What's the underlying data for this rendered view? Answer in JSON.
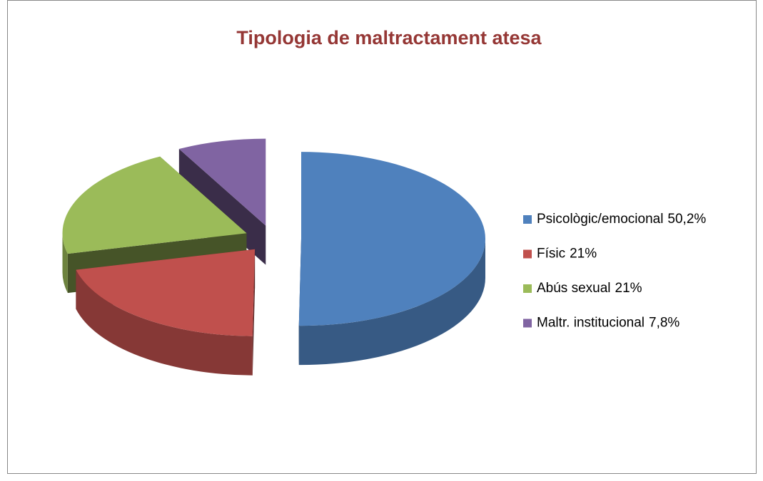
{
  "chart_data": {
    "type": "pie3d",
    "title": "Tipologia de maltractament atesa",
    "categories": [
      "Psicològic/emocional",
      "Físic",
      "Abús sexual",
      "Maltr. institucional"
    ],
    "values": [
      50.2,
      21,
      21,
      7.8
    ],
    "value_labels": [
      "50,2%",
      "21%",
      "21%",
      "7,8%"
    ],
    "colors": [
      "#4f81bd",
      "#c0504d",
      "#9bbb59",
      "#8064a2"
    ],
    "legend": "right"
  }
}
